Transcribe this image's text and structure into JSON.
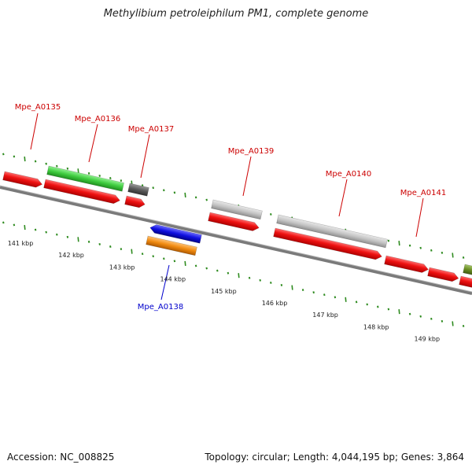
{
  "title": "Methylibium petroleiphilum PM1, complete genome",
  "accession": "Accession: NC_008825",
  "summary": "Topology: circular; Length: 4,044,195 bp; Genes: 3,864",
  "colors": {
    "backbone": "#7a7a7a",
    "tick": "#2e8b1f",
    "label_red": "#cc0000",
    "label_blue": "#0000cc",
    "gene_red": "#ee1111",
    "gene_green": "#3fcc3f",
    "gene_gray": "#5a5a5a",
    "gene_lightgray": "#c4c4c4",
    "gene_blue": "#1010e0",
    "gene_orange": "#f08a10",
    "gene_olive": "#6b8e23"
  },
  "scale": {
    "unit": "kbp",
    "labels": [
      "141 kbp",
      "142 kbp",
      "143 kbp",
      "144 kbp",
      "145 kbp",
      "146 kbp",
      "147 kbp",
      "148 kbp",
      "149 kbp"
    ]
  },
  "gene_labels": [
    {
      "name": "Mpe_A0135",
      "strand": "forward"
    },
    {
      "name": "Mpe_A0136",
      "strand": "forward"
    },
    {
      "name": "Mpe_A0137",
      "strand": "forward"
    },
    {
      "name": "Mpe_A0139",
      "strand": "forward"
    },
    {
      "name": "Mpe_A0140",
      "strand": "forward"
    },
    {
      "name": "Mpe_A0141",
      "strand": "forward"
    },
    {
      "name": "Mpe_A0138",
      "strand": "reverse"
    }
  ]
}
